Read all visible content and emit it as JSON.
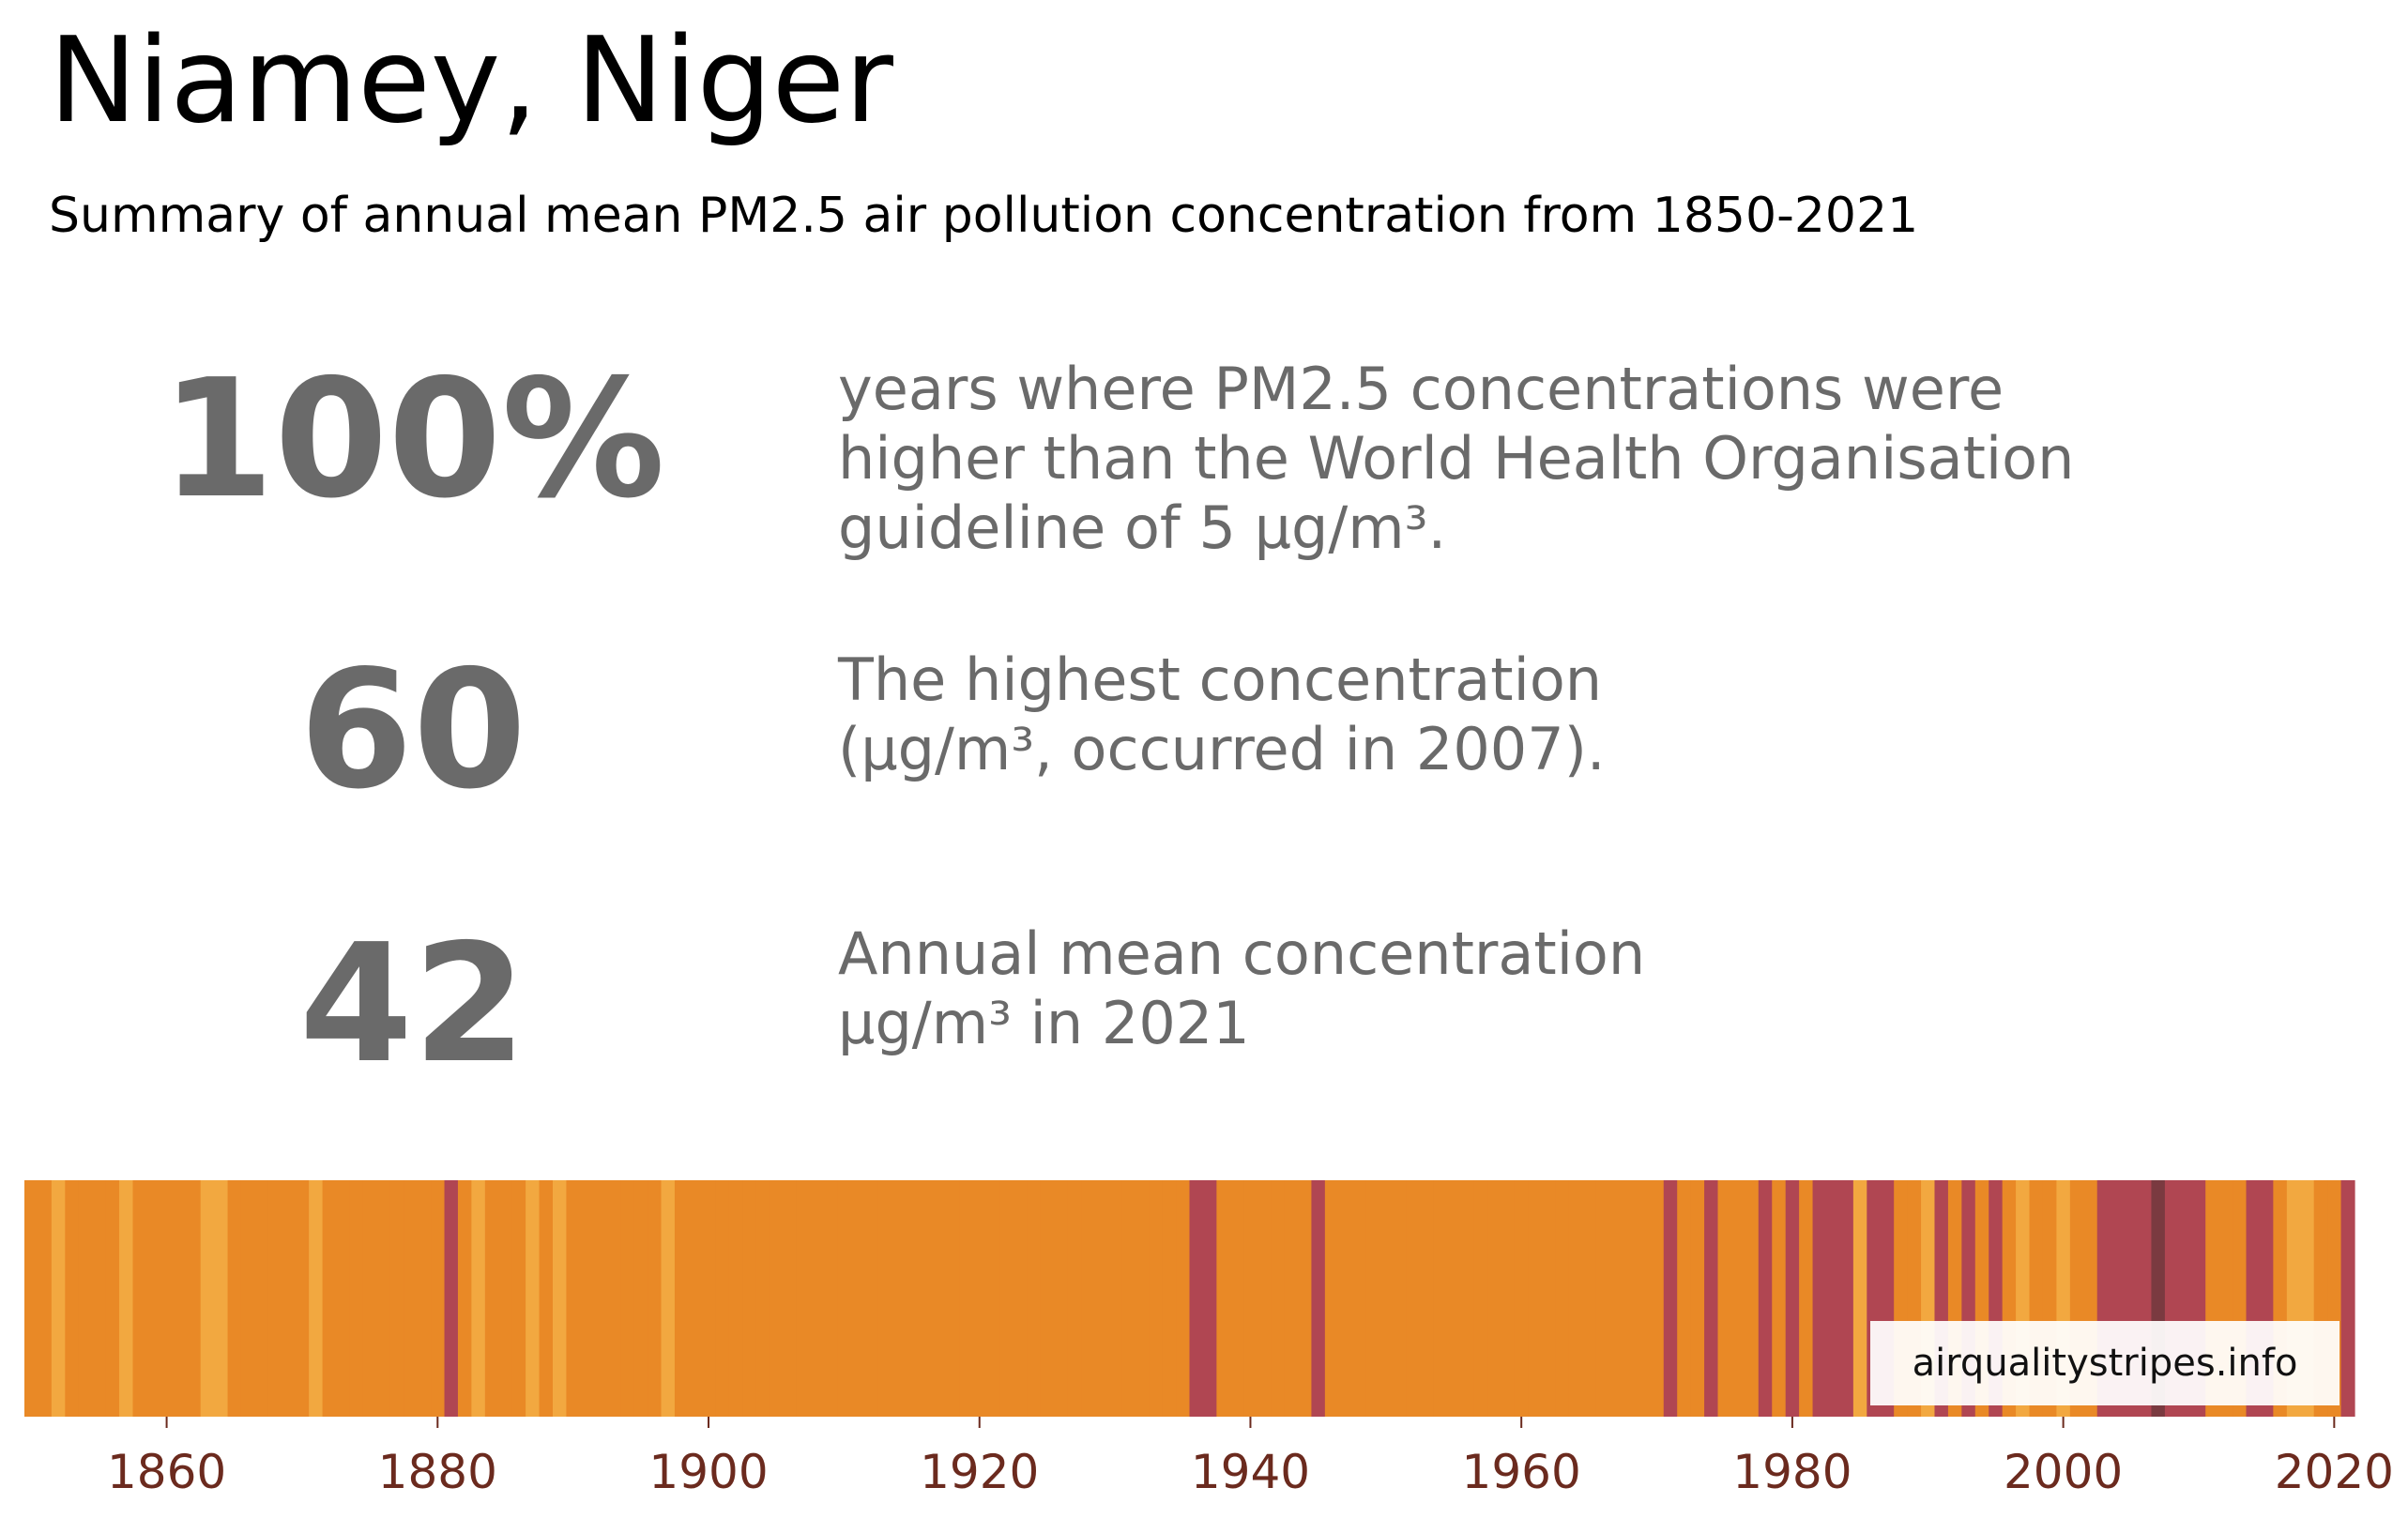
{
  "title": "Niamey, Niger",
  "subtitle": "Summary of annual mean PM2.5 air pollution concentration from 1850-2021",
  "stats": [
    {
      "value": "100%",
      "lines": [
        "years where PM2.5 concentrations were",
        "higher than the World Health Organisation",
        "guideline of 5 µg/m³."
      ]
    },
    {
      "value": "60",
      "lines": [
        "The highest concentration",
        "(µg/m³, occurred in 2007)."
      ]
    },
    {
      "value": "42",
      "lines": [
        "Annual mean concentration",
        "µg/m³ in 2021"
      ]
    }
  ],
  "badge": "airqualitystripes.info",
  "colors": {
    "stat_text": "#6a6a6a",
    "tick_text": "#6b2a1e",
    "stripe_base": "#e98926",
    "stripe_light": "#f2a840",
    "stripe_high": "#b04652",
    "stripe_highest": "#7a3a40"
  },
  "chart_data": {
    "type": "heatmap",
    "x_range": [
      1850,
      2021
    ],
    "xticks": [
      1860,
      1880,
      1900,
      1920,
      1940,
      1960,
      1980,
      2000,
      2020
    ],
    "base_level": "base",
    "special_years": {
      "light": [
        1852,
        1857,
        1863,
        1864,
        1871,
        1883,
        1887,
        1889,
        1897,
        1985,
        1986,
        1990,
        1993,
        1995,
        1997,
        2000,
        2017,
        2018
      ],
      "high": [
        1881,
        1936,
        1937,
        1945,
        1971,
        1974,
        1978,
        1980,
        1982,
        1983,
        1984,
        1986,
        1987,
        1991,
        1993,
        1995,
        2003,
        2004,
        2005,
        2006,
        2008,
        2009,
        2010,
        2014,
        2015,
        2021
      ],
      "highest": [
        2007
      ]
    }
  }
}
